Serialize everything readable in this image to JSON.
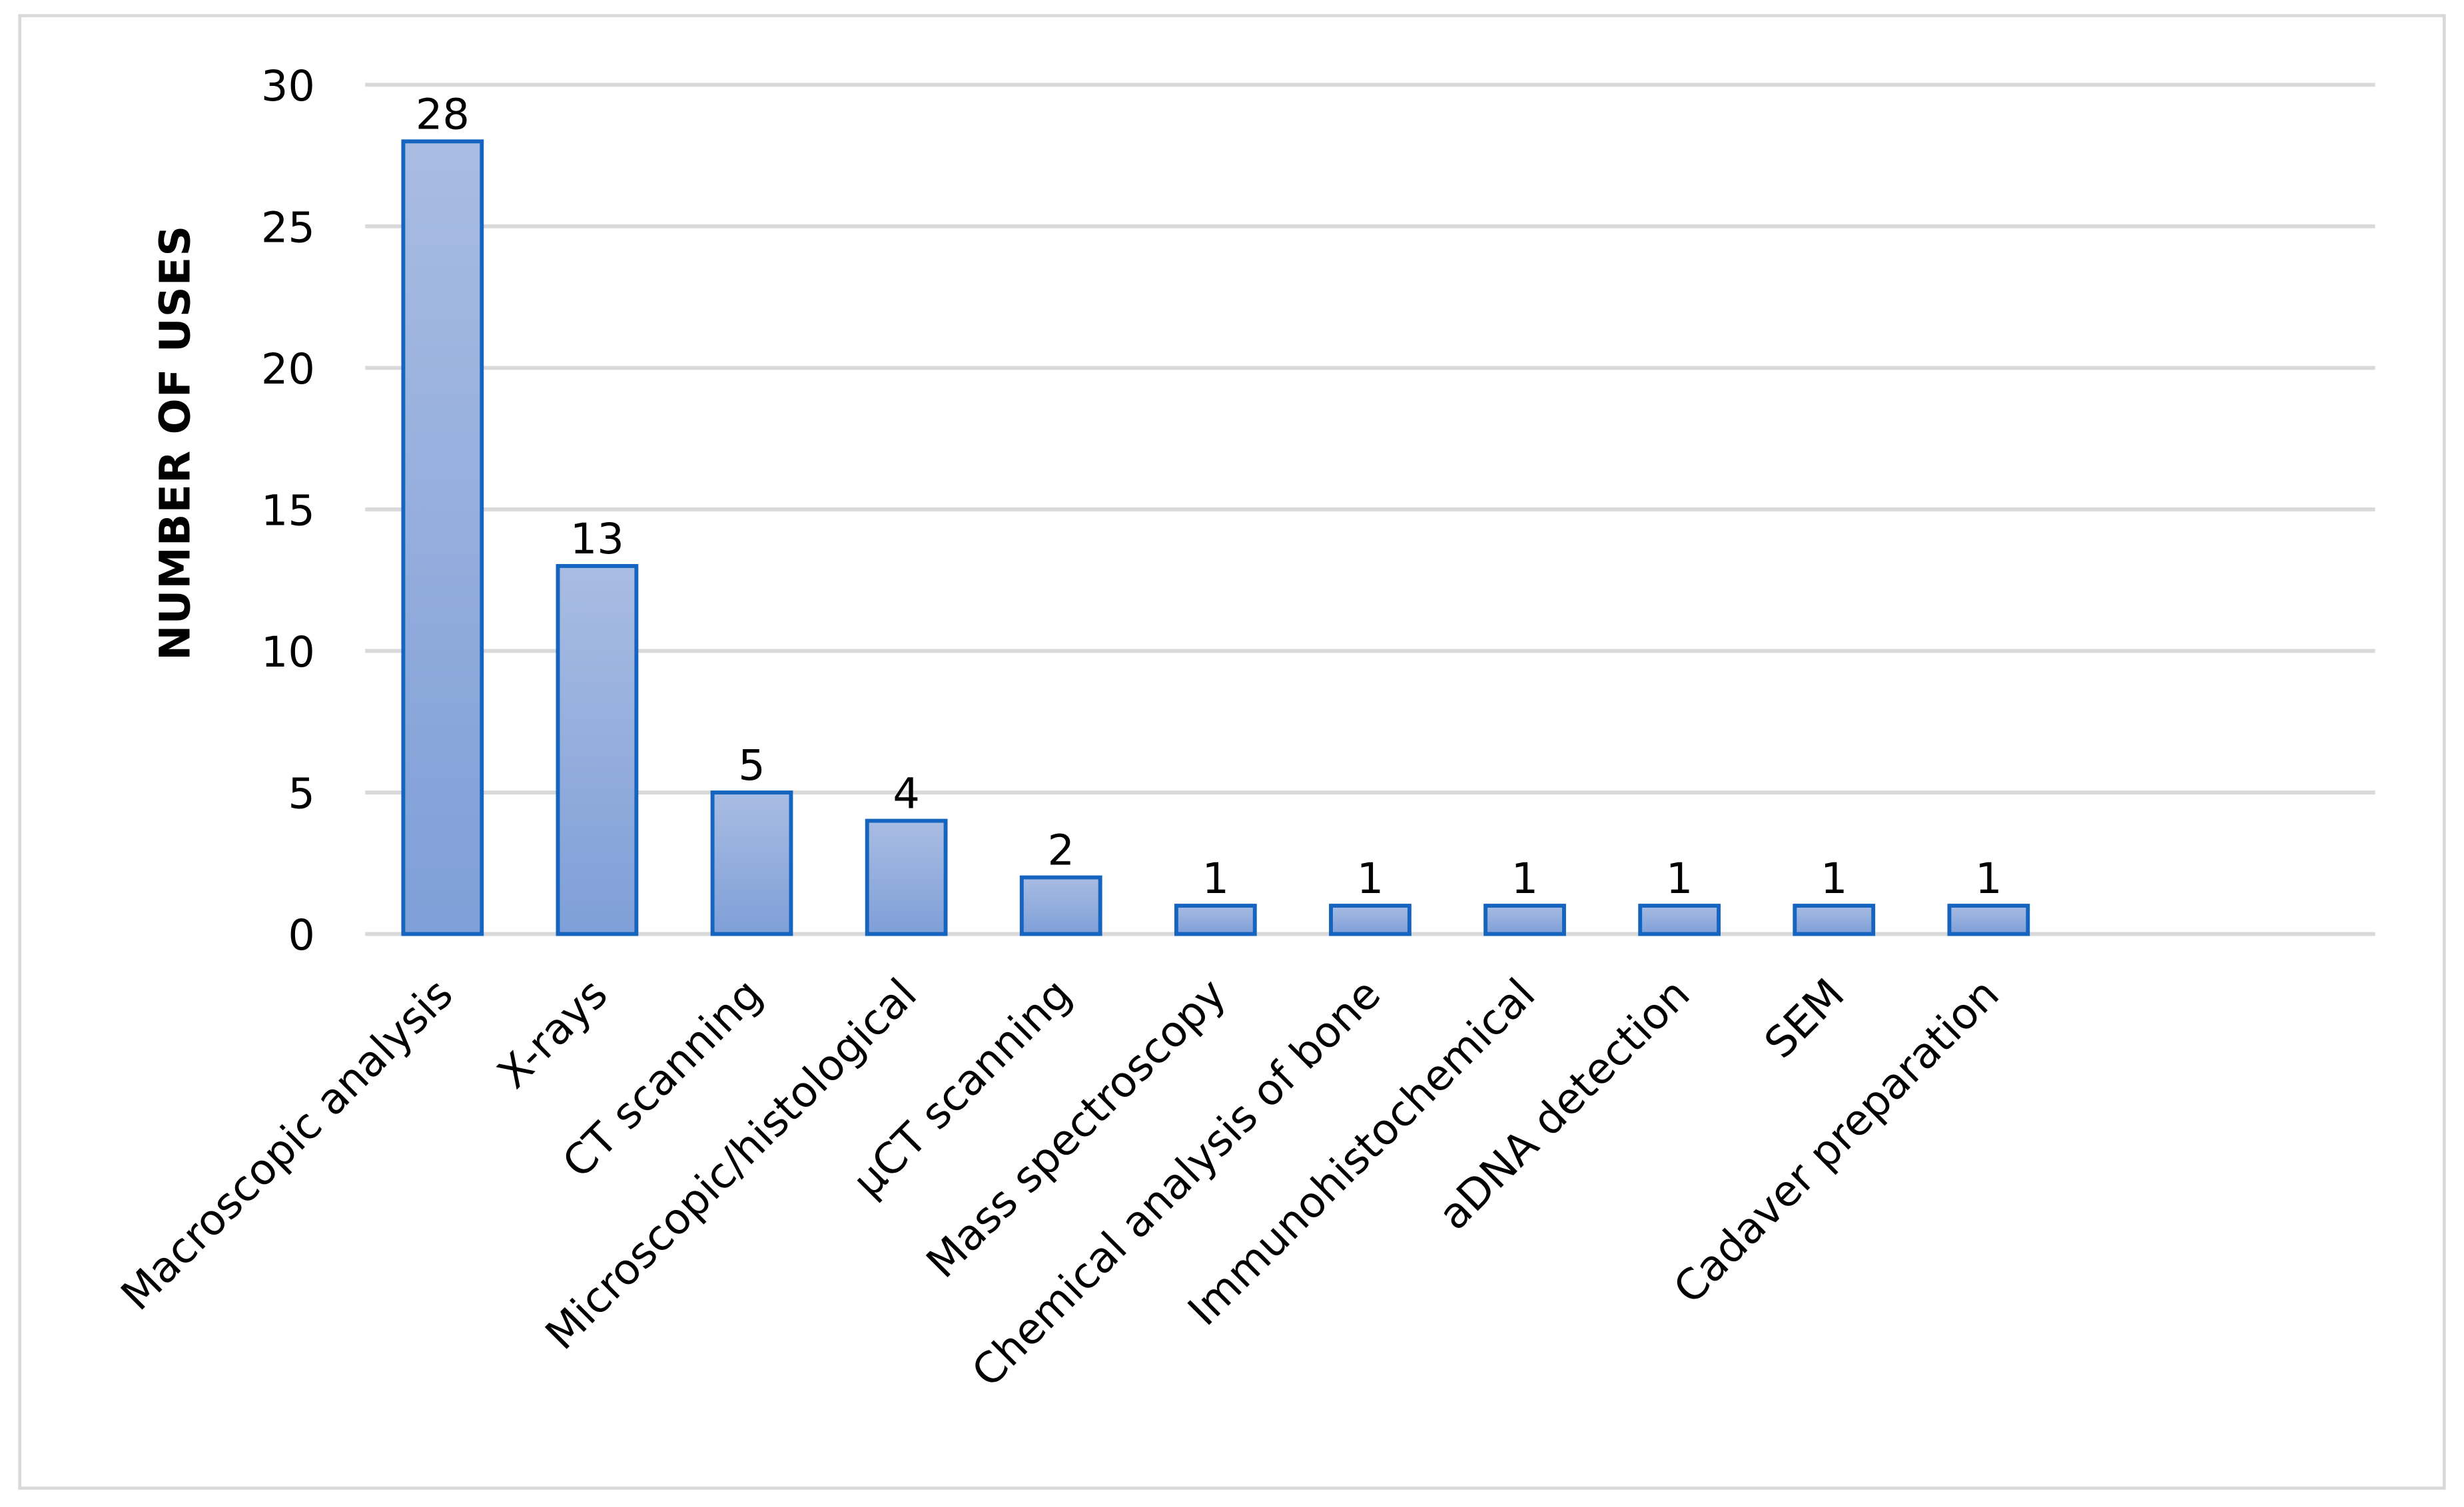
{
  "chart_data": {
    "type": "bar",
    "title": "",
    "xlabel": "",
    "ylabel": "NUMBER OF USES",
    "ylim": [
      0,
      30
    ],
    "yticks": [
      0,
      5,
      10,
      15,
      20,
      25,
      30
    ],
    "grid": true,
    "legend": "none",
    "categories": [
      "Macroscopic analysis",
      "X-rays",
      "CT scanning",
      "Microscopic/histological",
      "µCT scanning",
      "Mass spectroscopy",
      "Chemical analysis of bone",
      "Immunohistochemical",
      "aDNA detection",
      "SEM",
      "Cadaver preparation"
    ],
    "values": [
      28,
      13,
      5,
      4,
      2,
      1,
      1,
      1,
      1,
      1,
      1
    ],
    "data_labels": [
      "28",
      "13",
      "5",
      "4",
      "2",
      "1",
      "1",
      "1",
      "1",
      "1",
      "1"
    ],
    "colors": {
      "bar_fill_top": "#a9bce2",
      "bar_fill_bottom": "#7e9fd8",
      "bar_border": "#1565c0",
      "grid": "#d9d9d9",
      "frame": "#d9d9d9"
    }
  }
}
